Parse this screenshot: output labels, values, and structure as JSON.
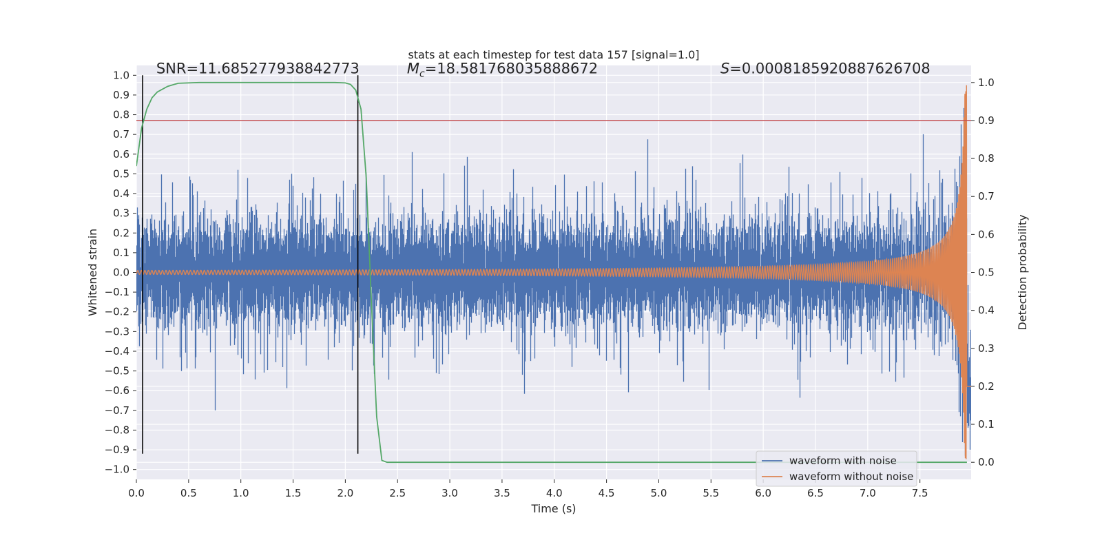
{
  "chart_data": {
    "type": "line",
    "title": "stats at each timestep for test data 157 [signal=1.0]",
    "xlabel": "Time (s)",
    "ylabel": "Whitened strain",
    "y2label": "Detection probability",
    "xlim": [
      0.0,
      7.99
    ],
    "ylim": [
      -1.05,
      1.05
    ],
    "y2lim": [
      -0.045,
      1.045
    ],
    "xticks": [
      0.0,
      0.5,
      1.0,
      1.5,
      2.0,
      2.5,
      3.0,
      3.5,
      4.0,
      4.5,
      5.0,
      5.5,
      6.0,
      6.5,
      7.0,
      7.5
    ],
    "xtick_labels": [
      "0.0",
      "0.5",
      "1.0",
      "1.5",
      "2.0",
      "2.5",
      "3.0",
      "3.5",
      "4.0",
      "4.5",
      "5.0",
      "5.5",
      "6.0",
      "6.5",
      "7.0",
      "7.5"
    ],
    "yticks": [
      1.0,
      0.9,
      0.8,
      0.7,
      0.6,
      0.5,
      0.4,
      0.3,
      0.2,
      0.1,
      0.0,
      -0.1,
      -0.2,
      -0.3,
      -0.4,
      -0.5,
      -0.6,
      -0.7,
      -0.8,
      -0.9,
      -1.0
    ],
    "ytick_labels": [
      "1.0",
      "0.9",
      "0.8",
      "0.7",
      "0.6",
      "0.5",
      "0.4",
      "0.3",
      "0.2",
      "0.1",
      "0.0",
      "−0.1",
      "−0.2",
      "−0.3",
      "−0.4",
      "−0.5",
      "−0.6",
      "−0.7",
      "−0.8",
      "−0.9",
      "−1.0"
    ],
    "y2ticks": [
      1.0,
      0.9,
      0.8,
      0.7,
      0.6,
      0.5,
      0.4,
      0.3,
      0.2,
      0.1,
      0.0
    ],
    "y2tick_labels": [
      "1.0",
      "0.9",
      "0.8",
      "0.7",
      "0.6",
      "0.5",
      "0.4",
      "0.3",
      "0.2",
      "0.1",
      "0.0"
    ],
    "annotations": {
      "snr": "SNR=11.685277938842773",
      "mc_symbol": "M",
      "mc_sub": "c",
      "mc_value": "=18.581768035888672",
      "s_symbol": "S",
      "s_value": "=0.0008185920887626708"
    },
    "series": [
      {
        "name": "waveform with noise",
        "color": "#4c72b0",
        "axis": "left",
        "kind": "noisy strain, envelope approx ±0.35 with spikes to ±0.7, range [-0.92, 1.0]"
      },
      {
        "name": "waveform without noise",
        "color": "#dd8452",
        "axis": "left",
        "kind": "chirp, amplitude 0.01 at t=0 growing to ~0.9 at t=7.95"
      },
      {
        "name": "detection probability",
        "color": "#55a868",
        "axis": "right",
        "x": [
          0.0,
          0.05,
          0.1,
          0.15,
          0.2,
          0.3,
          0.4,
          0.6,
          1.0,
          1.5,
          1.9,
          2.0,
          2.05,
          2.1,
          2.15,
          2.2,
          2.25,
          2.3,
          2.35,
          2.4,
          3.0,
          4.0,
          5.0,
          6.0,
          7.0,
          7.95
        ],
        "y": [
          0.78,
          0.88,
          0.93,
          0.96,
          0.975,
          0.99,
          0.998,
          1.0,
          1.0,
          1.0,
          1.0,
          0.999,
          0.995,
          0.98,
          0.93,
          0.75,
          0.42,
          0.12,
          0.005,
          0.0,
          0.0,
          0.0,
          0.0,
          0.0,
          0.0,
          0.0
        ]
      },
      {
        "name": "threshold",
        "color": "#c44e52",
        "axis": "right",
        "value": 0.9
      }
    ],
    "vertical_markers": [
      0.06,
      2.12
    ],
    "marker_range": [
      -0.92,
      1.0
    ],
    "legend": {
      "position": "bottom-right",
      "entries": [
        {
          "label": "waveform with noise",
          "color": "#4c72b0"
        },
        {
          "label": "waveform without noise",
          "color": "#dd8452"
        }
      ]
    },
    "background": "#eaeaf2",
    "grid": true
  }
}
